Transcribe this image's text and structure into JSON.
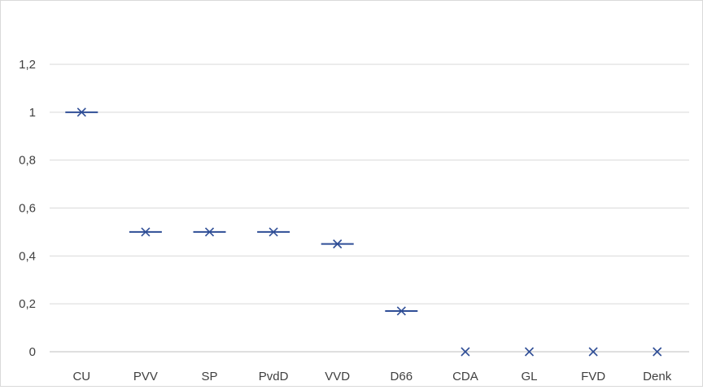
{
  "chart_data": {
    "type": "scatter",
    "title": "",
    "xlabel": "",
    "ylabel": "",
    "categories": [
      "CU",
      "PVV",
      "SP",
      "PvdD",
      "VVD",
      "D66",
      "CDA",
      "GL",
      "FVD",
      "Denk"
    ],
    "series": [
      {
        "values": [
          1,
          0.5,
          0.5,
          0.5,
          0.45,
          0.17,
          0,
          0,
          0,
          0
        ],
        "marker": "x-with-dash"
      }
    ],
    "ylim": [
      0,
      1.2
    ],
    "yticks": [
      0,
      0.2,
      0.4,
      0.6,
      0.8,
      1,
      1.2
    ],
    "ytick_labels": [
      "0",
      "0,2",
      "0,4",
      "0,6",
      "0,8",
      "1",
      "1,2"
    ],
    "grid": true,
    "legend": "none",
    "colors": {
      "marker": "#2f4e96",
      "grid": "#d9d9d9",
      "text": "#404040"
    }
  }
}
